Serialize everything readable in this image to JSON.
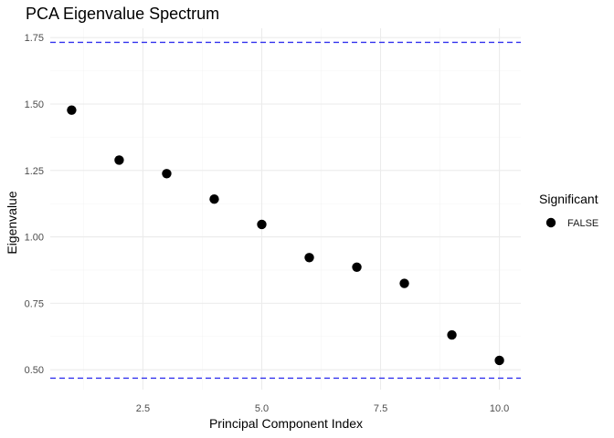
{
  "chart_data": {
    "type": "scatter",
    "title": "PCA Eigenvalue Spectrum",
    "xlabel": "Principal Component Index",
    "ylabel": "Eigenvalue",
    "xlim": [
      0.55,
      10.45
    ],
    "ylim": [
      0.425,
      1.785
    ],
    "x_ticks": [
      2.5,
      5.0,
      7.5,
      10.0
    ],
    "x_tick_labels": [
      "2.5",
      "5.0",
      "7.5",
      "10.0"
    ],
    "y_ticks": [
      0.5,
      0.75,
      1.0,
      1.25,
      1.5,
      1.75
    ],
    "y_tick_labels": [
      "0.50",
      "0.75",
      "1.00",
      "1.25",
      "1.50",
      "1.75"
    ],
    "grid": true,
    "series": [
      {
        "name": "FALSE",
        "color": "#000000",
        "x": [
          1,
          2,
          3,
          4,
          5,
          6,
          7,
          8,
          9,
          10
        ],
        "y": [
          1.477,
          1.289,
          1.238,
          1.142,
          1.047,
          0.922,
          0.886,
          0.825,
          0.631,
          0.535
        ]
      }
    ],
    "reference_lines": [
      {
        "y": 1.732,
        "color": "#3333ee",
        "style": "dashed"
      },
      {
        "y": 0.468,
        "color": "#3333ee",
        "style": "dashed"
      }
    ],
    "legend": {
      "title": "Significant",
      "position": "right",
      "entries": [
        "FALSE"
      ]
    }
  }
}
